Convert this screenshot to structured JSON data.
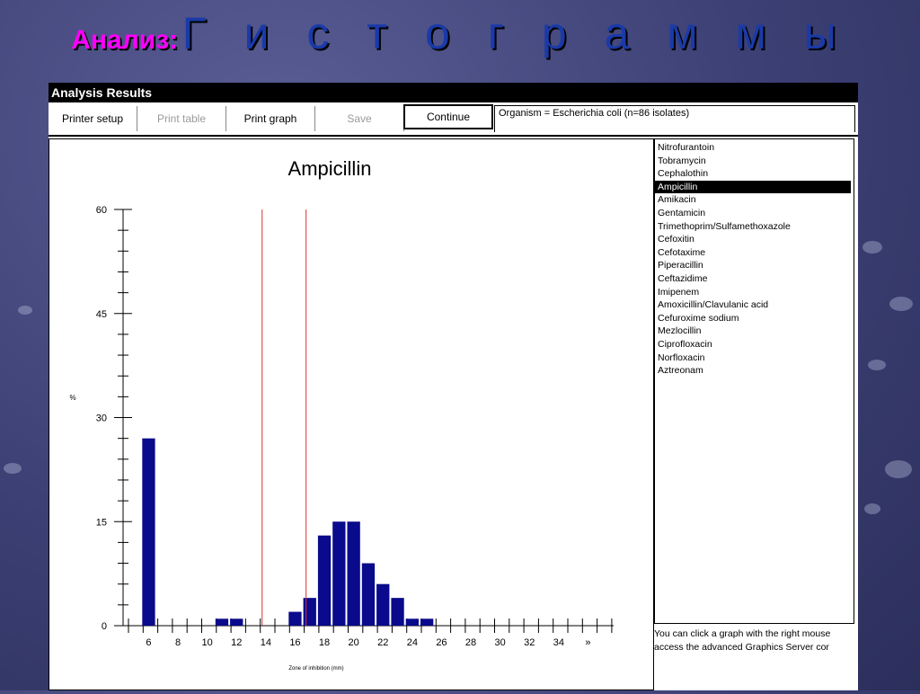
{
  "slide": {
    "title_prefix": "Анализ:",
    "title_main": "Г и с т о г р а м м ы"
  },
  "window": {
    "title": "Analysis Results"
  },
  "toolbar": {
    "printer_setup": "Printer setup",
    "print_table": "Print table",
    "print_graph": "Print graph",
    "save": "Save",
    "continue": "Continue",
    "organism_text": "Organism = Escherichia coli   (n=86 isolates)"
  },
  "drug_list": {
    "items": [
      "Nitrofurantoin",
      "Tobramycin",
      "Cephalothin",
      "Ampicillin",
      "Amikacin",
      "Gentamicin",
      "Trimethoprim/Sulfamethoxazole",
      "Cefoxitin",
      "Cefotaxime",
      "Piperacillin",
      "Ceftazidime",
      "Imipenem",
      "Amoxicillin/Clavulanic acid",
      "Cefuroxime sodium",
      "Mezlocillin",
      "Ciprofloxacin",
      "Norfloxacin",
      "Aztreonam"
    ],
    "selected": "Ampicillin"
  },
  "hint": {
    "line1": "You can click a graph with the right mouse",
    "line2": "access the advanced Graphics Server cor"
  },
  "colors": {
    "bar": "#0a0a8c",
    "breakpoint": "#e03030",
    "title_prefix": "#ff00ff",
    "title_main": "#1a3aa8"
  },
  "chart_data": {
    "type": "bar",
    "title": "Ampicillin",
    "xlabel": "Zone of inhibition (mm)",
    "ylabel": "%",
    "ylim": [
      0,
      60
    ],
    "yticks": [
      "0",
      "15",
      "30",
      "45",
      "60"
    ],
    "xticks": [
      "6",
      "8",
      "10",
      "12",
      "14",
      "16",
      "18",
      "20",
      "22",
      "24",
      "26",
      "28",
      "30",
      "32",
      "34",
      "»"
    ],
    "categories": [
      6,
      11,
      12,
      16,
      17,
      18,
      19,
      20,
      21,
      22,
      23,
      24,
      25
    ],
    "values": [
      27,
      1,
      1,
      2,
      4,
      13,
      15,
      15,
      9,
      6,
      4,
      1,
      1
    ],
    "breakpoints": [
      13.75,
      16.75
    ]
  }
}
